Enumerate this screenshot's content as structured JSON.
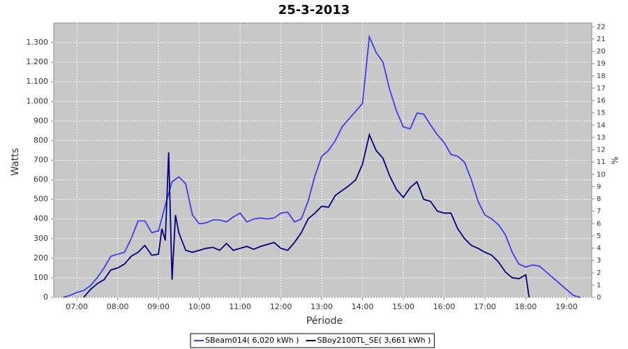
{
  "chart_data": {
    "type": "line",
    "title": "25-3-2013",
    "x_label": "Période",
    "y_label": "Watts",
    "y2_label": "%",
    "xlim": [
      "06:26",
      "19:37"
    ],
    "xticks": [
      "07:00",
      "08:00",
      "09:00",
      "10:00",
      "11:00",
      "12:00",
      "13:00",
      "14:00",
      "15:00",
      "16:00",
      "17:00",
      "18:00",
      "19:00"
    ],
    "ylim": [
      0,
      1400
    ],
    "yticks": [
      0,
      100,
      200,
      300,
      400,
      500,
      600,
      700,
      800,
      900,
      {
        "value": 1000,
        "label": "1.000"
      },
      {
        "value": 1100,
        "label": "1.100"
      },
      {
        "value": 1200,
        "label": "1.200"
      },
      {
        "value": 1300,
        "label": "1.300"
      }
    ],
    "y2lim": [
      0,
      22.3
    ],
    "y2ticks": [
      0,
      1,
      2,
      3,
      4,
      5,
      6,
      7,
      8,
      9,
      10,
      11,
      12,
      13,
      14,
      15,
      16,
      17,
      18,
      19,
      20,
      21,
      22
    ],
    "grid": true,
    "background": "#c8c8c8",
    "series": [
      {
        "name": "SBeam014( 6,020 kWh )",
        "color": "#3c3cf0",
        "x": [
          "06:40",
          "06:50",
          "07:00",
          "07:10",
          "07:20",
          "07:30",
          "07:40",
          "07:50",
          "08:00",
          "08:10",
          "08:20",
          "08:30",
          "08:40",
          "08:50",
          "09:00",
          "09:10",
          "09:20",
          "09:30",
          "09:40",
          "09:50",
          "10:00",
          "10:10",
          "10:20",
          "10:30",
          "10:40",
          "10:50",
          "11:00",
          "11:10",
          "11:20",
          "11:30",
          "11:40",
          "11:50",
          "12:00",
          "12:10",
          "12:20",
          "12:30",
          "12:40",
          "12:50",
          "13:00",
          "13:10",
          "13:20",
          "13:30",
          "13:40",
          "13:50",
          "14:00",
          "14:10",
          "14:20",
          "14:30",
          "14:40",
          "14:50",
          "15:00",
          "15:10",
          "15:20",
          "15:30",
          "15:40",
          "15:50",
          "16:00",
          "16:10",
          "16:20",
          "16:30",
          "16:40",
          "16:50",
          "17:00",
          "17:10",
          "17:20",
          "17:30",
          "17:40",
          "17:50",
          "18:00",
          "18:10",
          "18:20",
          "18:30",
          "18:40",
          "18:50",
          "19:00",
          "19:10",
          "19:20"
        ],
        "values": [
          0,
          10,
          25,
          35,
          60,
          100,
          150,
          210,
          220,
          230,
          300,
          390,
          390,
          330,
          340,
          470,
          590,
          615,
          580,
          420,
          375,
          380,
          395,
          395,
          385,
          410,
          430,
          385,
          400,
          405,
          400,
          405,
          430,
          435,
          385,
          400,
          490,
          620,
          720,
          750,
          800,
          870,
          910,
          950,
          990,
          1330,
          1250,
          1200,
          1060,
          950,
          870,
          860,
          940,
          935,
          880,
          830,
          790,
          730,
          720,
          690,
          600,
          490,
          420,
          400,
          370,
          320,
          230,
          170,
          155,
          165,
          160,
          130,
          100,
          70,
          40,
          10,
          0
        ]
      },
      {
        "name": "SBoy2100TL_SE( 3,661 kWh )",
        "color": "#000080",
        "x": [
          "07:10",
          "07:20",
          "07:30",
          "07:40",
          "07:50",
          "08:00",
          "08:10",
          "08:20",
          "08:30",
          "08:40",
          "08:50",
          "09:00",
          "09:05",
          "09:10",
          "09:15",
          "09:20",
          "09:25",
          "09:30",
          "09:40",
          "09:50",
          "10:00",
          "10:10",
          "10:20",
          "10:30",
          "10:40",
          "10:50",
          "11:00",
          "11:10",
          "11:20",
          "11:30",
          "11:40",
          "11:50",
          "12:00",
          "12:10",
          "12:20",
          "12:30",
          "12:40",
          "12:50",
          "13:00",
          "13:10",
          "13:20",
          "13:30",
          "13:40",
          "13:50",
          "14:00",
          "14:10",
          "14:20",
          "14:30",
          "14:40",
          "14:50",
          "15:00",
          "15:10",
          "15:20",
          "15:30",
          "15:40",
          "15:50",
          "16:00",
          "16:10",
          "16:20",
          "16:30",
          "16:40",
          "16:50",
          "17:00",
          "17:10",
          "17:20",
          "17:30",
          "17:40",
          "17:50",
          "18:00",
          "18:05"
        ],
        "values": [
          0,
          40,
          70,
          90,
          140,
          150,
          170,
          210,
          230,
          265,
          215,
          220,
          350,
          290,
          740,
          90,
          420,
          330,
          240,
          230,
          240,
          250,
          255,
          240,
          275,
          240,
          250,
          260,
          245,
          260,
          270,
          280,
          250,
          240,
          280,
          330,
          400,
          430,
          465,
          460,
          520,
          545,
          570,
          600,
          680,
          830,
          750,
          710,
          620,
          550,
          510,
          560,
          590,
          500,
          490,
          440,
          430,
          430,
          350,
          300,
          265,
          250,
          230,
          215,
          180,
          130,
          100,
          95,
          115,
          0
        ]
      }
    ]
  }
}
